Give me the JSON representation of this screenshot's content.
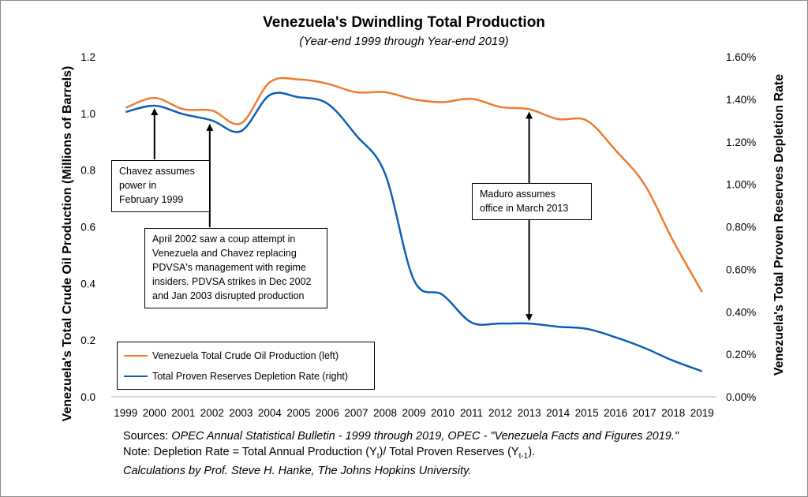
{
  "chart_data": {
    "type": "line",
    "title": "Venezuela's Dwindling Total Production",
    "subtitle": "(Year-end 1999 through Year-end 2019)",
    "x": [
      "1999",
      "2000",
      "2001",
      "2002",
      "2003",
      "2004",
      "2005",
      "2006",
      "2007",
      "2008",
      "2009",
      "2010",
      "2011",
      "2012",
      "2013",
      "2014",
      "2015",
      "2016",
      "2017",
      "2018",
      "2019"
    ],
    "ylabel_left": "Venezuela's Total Crude Oil Production (Millions of Barrels)",
    "ylabel_right": "Venezuela's Total Proven Reserves Depletion Rate",
    "ylim_left": [
      0,
      1.2
    ],
    "ylim_right": [
      0,
      1.6
    ],
    "yticks_left": [
      "0.0",
      "0.2",
      "0.4",
      "0.6",
      "0.8",
      "1.0",
      "1.2"
    ],
    "yticks_right": [
      "0.00%",
      "0.20%",
      "0.40%",
      "0.60%",
      "0.80%",
      "1.00%",
      "1.20%",
      "1.40%",
      "1.60%"
    ],
    "series": [
      {
        "name": "Venezuela Total Crude Oil Production (left)",
        "axis": "left",
        "color": "#ed7d31",
        "values": [
          1.02,
          1.055,
          1.015,
          1.01,
          0.965,
          1.11,
          1.12,
          1.105,
          1.075,
          1.075,
          1.05,
          1.04,
          1.052,
          1.023,
          1.015,
          0.98,
          0.975,
          0.87,
          0.75,
          0.55,
          0.37
        ]
      },
      {
        "name": "Total Proven Reserves Depletion Rate (right)",
        "axis": "right",
        "color": "#0e5fb4",
        "values": [
          1.34,
          1.37,
          1.33,
          1.3,
          1.25,
          1.42,
          1.41,
          1.38,
          1.23,
          1.05,
          0.55,
          0.48,
          0.35,
          0.345,
          0.345,
          0.33,
          0.32,
          0.28,
          0.23,
          0.17,
          0.12
        ]
      }
    ],
    "legend_position": "bottom-left",
    "annotations": [
      {
        "id": "chavez",
        "lines": [
          "Chavez assumes",
          "power in",
          "February 1999"
        ],
        "year": "2000"
      },
      {
        "id": "coup",
        "lines": [
          "April 2002 saw a coup attempt in",
          "Venezuela and Chavez replacing",
          "PDVSA's management with regime",
          "insiders. PDVSA strikes in Dec 2002",
          "and Jan 2003 disrupted production"
        ],
        "year": "2002"
      },
      {
        "id": "maduro",
        "lines": [
          "Maduro assumes",
          "office in March 2013"
        ],
        "year": "2013"
      }
    ]
  },
  "sources": {
    "line1_prefix": "Sources:",
    "line1_italic": "OPEC Annual Statistical Bulletin - 1999 through 2019, OPEC - \"Venezuela Facts and Figures 2019.\"",
    "line2_prefix": "Note: Depletion Rate = Total Annual Production (Y",
    "line2_sub1": "t",
    "line2_mid": ")/ Total Proven Reserves (Y",
    "line2_sub2": "t-1",
    "line2_suffix": ").",
    "line3": "Calculations by Prof. Steve H. Hanke, The Johns Hopkins University."
  }
}
